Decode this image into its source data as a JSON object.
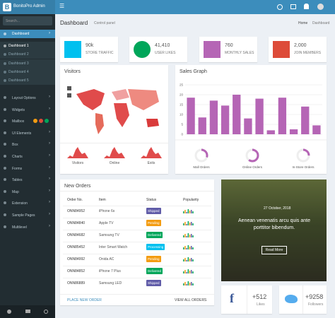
{
  "header": {
    "brand": "BonitoPro Admin"
  },
  "sidebar": {
    "search": "Search...",
    "items": [
      "Dashboard",
      "Dashboard 1",
      "Dashboard 2",
      "Dashboard 3",
      "Dashboard 4",
      "Dashboard 5",
      "Layout Options",
      "Widgets",
      "Mailbox",
      "UI Elements",
      "Box",
      "Charts",
      "Forms",
      "Tables",
      "Map",
      "Extension",
      "Sample Pages",
      "Multilevel"
    ]
  },
  "page": {
    "title": "Dashboard",
    "subtitle": "Control panel",
    "breadcrumb": [
      "Home",
      "Dashboard"
    ]
  },
  "stats": [
    {
      "value": "90k",
      "label": "STORE TRAFFIC",
      "color": "#00c0ef"
    },
    {
      "value": "41,410",
      "label": "USER LIKES",
      "color": "#00a65a"
    },
    {
      "value": "760",
      "label": "MONTHLY SALES",
      "color": "#b565b5"
    },
    {
      "value": "2,000",
      "label": "JOIN MEMBERS",
      "color": "#dd4b39"
    }
  ],
  "visitors": {
    "title": "Visitors",
    "sparklines": [
      "Visitors",
      "Online",
      "Exits"
    ]
  },
  "sales_graph": {
    "type": "bar",
    "title": "Sales Graph",
    "values": [
      18.5,
      8.5,
      17,
      14.5,
      20,
      8,
      18,
      2,
      18.5,
      2.5,
      14,
      4.5
    ],
    "color": "#b565b5",
    "ylim": [
      0,
      25
    ],
    "yticks": [
      0,
      5,
      10,
      15,
      20,
      25
    ],
    "grid": true,
    "donuts": [
      {
        "label": "Mall Orders",
        "value": 30
      },
      {
        "label": "Online Orders",
        "value": 60
      },
      {
        "label": "In-Store Orders",
        "value": 25
      }
    ]
  },
  "orders": {
    "title": "New Orders",
    "columns": [
      "Order No.",
      "Item",
      "Status",
      "Popularity"
    ],
    "rows": [
      [
        "ONN84952",
        "iPhone 6s",
        "Shipped"
      ],
      [
        "ONN84840",
        "Apple TV",
        "Pending"
      ],
      [
        "ONN84682",
        "Samsung TV",
        "Delivered"
      ],
      [
        "ONN85452",
        "Inter Smart Watch",
        "Processing"
      ],
      [
        "ONN84992",
        "Onida AC",
        "Pending"
      ],
      [
        "ONN84852",
        "iPhone 7 Plus",
        "Delivered"
      ],
      [
        "ONN86889",
        "Samsung LED",
        "Shipped"
      ]
    ],
    "footer": [
      "PLACE NEW ORDER",
      "VIEW ALL ORDERS"
    ]
  },
  "card": {
    "date": "27 October, 2018",
    "text": "Aenean venenatis arcu quis ante porttitor bibendum.",
    "button": "Read More"
  },
  "social": [
    {
      "value": "+512",
      "label": "Likes"
    },
    {
      "value": "+9258",
      "label": "Followers"
    }
  ]
}
